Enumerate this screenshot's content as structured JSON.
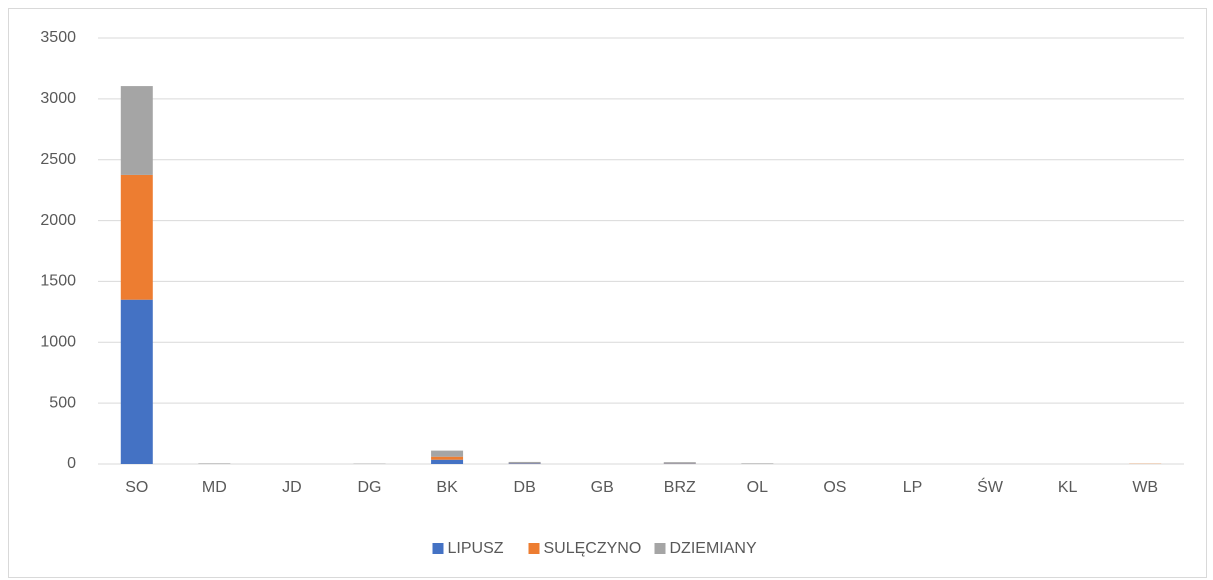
{
  "chart_data": {
    "type": "stacked_bar",
    "categories": [
      "SO",
      "MD",
      "JD",
      "DG",
      "BK",
      "DB",
      "GB",
      "BRZ",
      "OL",
      "OS",
      "LP",
      "ŚW",
      "KL",
      "WB"
    ],
    "series": [
      {
        "name": "LIPUSZ",
        "color": "#4472c4",
        "values": [
          1350,
          0,
          0,
          0,
          35,
          5,
          0,
          3,
          0,
          0,
          0,
          0,
          0,
          0
        ]
      },
      {
        "name": "SULĘCZYNO",
        "color": "#ed7d31",
        "values": [
          1025,
          0,
          0,
          0,
          25,
          2,
          0,
          2,
          0,
          0,
          0,
          0,
          0,
          2
        ]
      },
      {
        "name": "DZIEMIANY",
        "color": "#a5a5a5",
        "values": [
          730,
          5,
          0,
          3,
          50,
          10,
          0,
          10,
          5,
          0,
          0,
          0,
          0,
          0
        ]
      }
    ],
    "ylim": [
      0,
      3500
    ],
    "yticks": [
      0,
      500,
      1000,
      1500,
      2000,
      2500,
      3000,
      3500
    ],
    "grid": true,
    "legend": "bottom"
  }
}
